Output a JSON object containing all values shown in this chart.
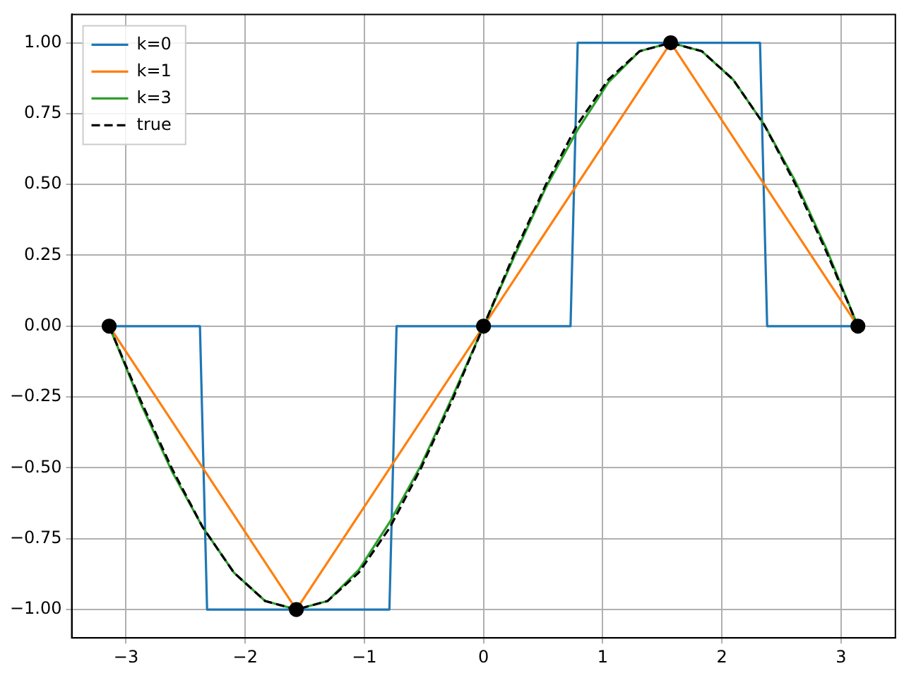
{
  "chart_data": {
    "type": "line",
    "xlim": [
      -3.456,
      3.456
    ],
    "ylim": [
      -1.1,
      1.1
    ],
    "xticks": [
      -3,
      -2,
      -1,
      0,
      1,
      2,
      3
    ],
    "yticks": [
      {
        "value": -1,
        "label": "−1.00"
      },
      {
        "value": -0.75,
        "label": "−0.75"
      },
      {
        "value": -0.5,
        "label": "−0.50"
      },
      {
        "value": -0.25,
        "label": "−0.25"
      },
      {
        "value": 0,
        "label": "0.00"
      },
      {
        "value": 0.25,
        "label": "0.25"
      },
      {
        "value": 0.5,
        "label": "0.50"
      },
      {
        "value": 0.75,
        "label": "0.75"
      },
      {
        "value": 1,
        "label": "1.00"
      }
    ],
    "grid": true,
    "legend": "top left",
    "series": [
      {
        "name": "k=0",
        "color": "#1f77b4",
        "line_style": "solid",
        "marker": "none",
        "x": [
          -3.1416,
          -2.38,
          -2.32,
          -0.79,
          -0.73,
          0.73,
          0.79,
          2.32,
          2.38,
          3.1416
        ],
        "values": [
          0,
          0,
          -1,
          -1,
          0,
          0,
          1,
          1,
          0,
          0
        ]
      },
      {
        "name": "k=1",
        "color": "#ff7f0e",
        "line_style": "solid",
        "marker": "none",
        "x": [
          -3.1416,
          -1.5708,
          0,
          1.5708,
          3.1416
        ],
        "values": [
          0,
          -1,
          0,
          1,
          0
        ]
      },
      {
        "name": "k=3",
        "color": "#2ca02c",
        "line_style": "solid",
        "marker": "none",
        "x": [
          -3.1416,
          -2.8798,
          -2.618,
          -2.3562,
          -2.0944,
          -1.8326,
          -1.5708,
          -1.309,
          -1.0472,
          -0.7854,
          -0.5236,
          -0.2618,
          0,
          0.2618,
          0.5236,
          0.7854,
          1.0472,
          1.309,
          1.5708,
          1.8326,
          2.0944,
          2.3562,
          2.618,
          2.8798,
          3.1416
        ],
        "values": [
          0,
          -0.27,
          -0.51,
          -0.71,
          -0.87,
          -0.97,
          -1,
          -0.97,
          -0.86,
          -0.69,
          -0.49,
          -0.25,
          0,
          0.25,
          0.49,
          0.69,
          0.86,
          0.97,
          1,
          0.97,
          0.87,
          0.71,
          0.51,
          0.27,
          0
        ]
      },
      {
        "name": "true",
        "color": "#000000",
        "line_style": "dashed",
        "marker": "none",
        "x": [
          -3.1416,
          -2.8798,
          -2.618,
          -2.3562,
          -2.0944,
          -1.8326,
          -1.5708,
          -1.309,
          -1.0472,
          -0.7854,
          -0.5236,
          -0.2618,
          0,
          0.2618,
          0.5236,
          0.7854,
          1.0472,
          1.309,
          1.5708,
          1.8326,
          2.0944,
          2.3562,
          2.618,
          2.8798,
          3.1416
        ],
        "values": [
          0,
          -0.26,
          -0.5,
          -0.71,
          -0.87,
          -0.97,
          -1,
          -0.97,
          -0.87,
          -0.71,
          -0.5,
          -0.26,
          0,
          0.26,
          0.5,
          0.71,
          0.87,
          0.97,
          1,
          0.97,
          0.87,
          0.71,
          0.5,
          0.26,
          0
        ]
      },
      {
        "type": "scatter",
        "color": "#000000",
        "marker": "circle",
        "x": [
          -3.1416,
          -1.5708,
          0,
          1.5708,
          3.1416
        ],
        "values": [
          0,
          -1,
          0,
          1,
          0
        ]
      }
    ]
  }
}
